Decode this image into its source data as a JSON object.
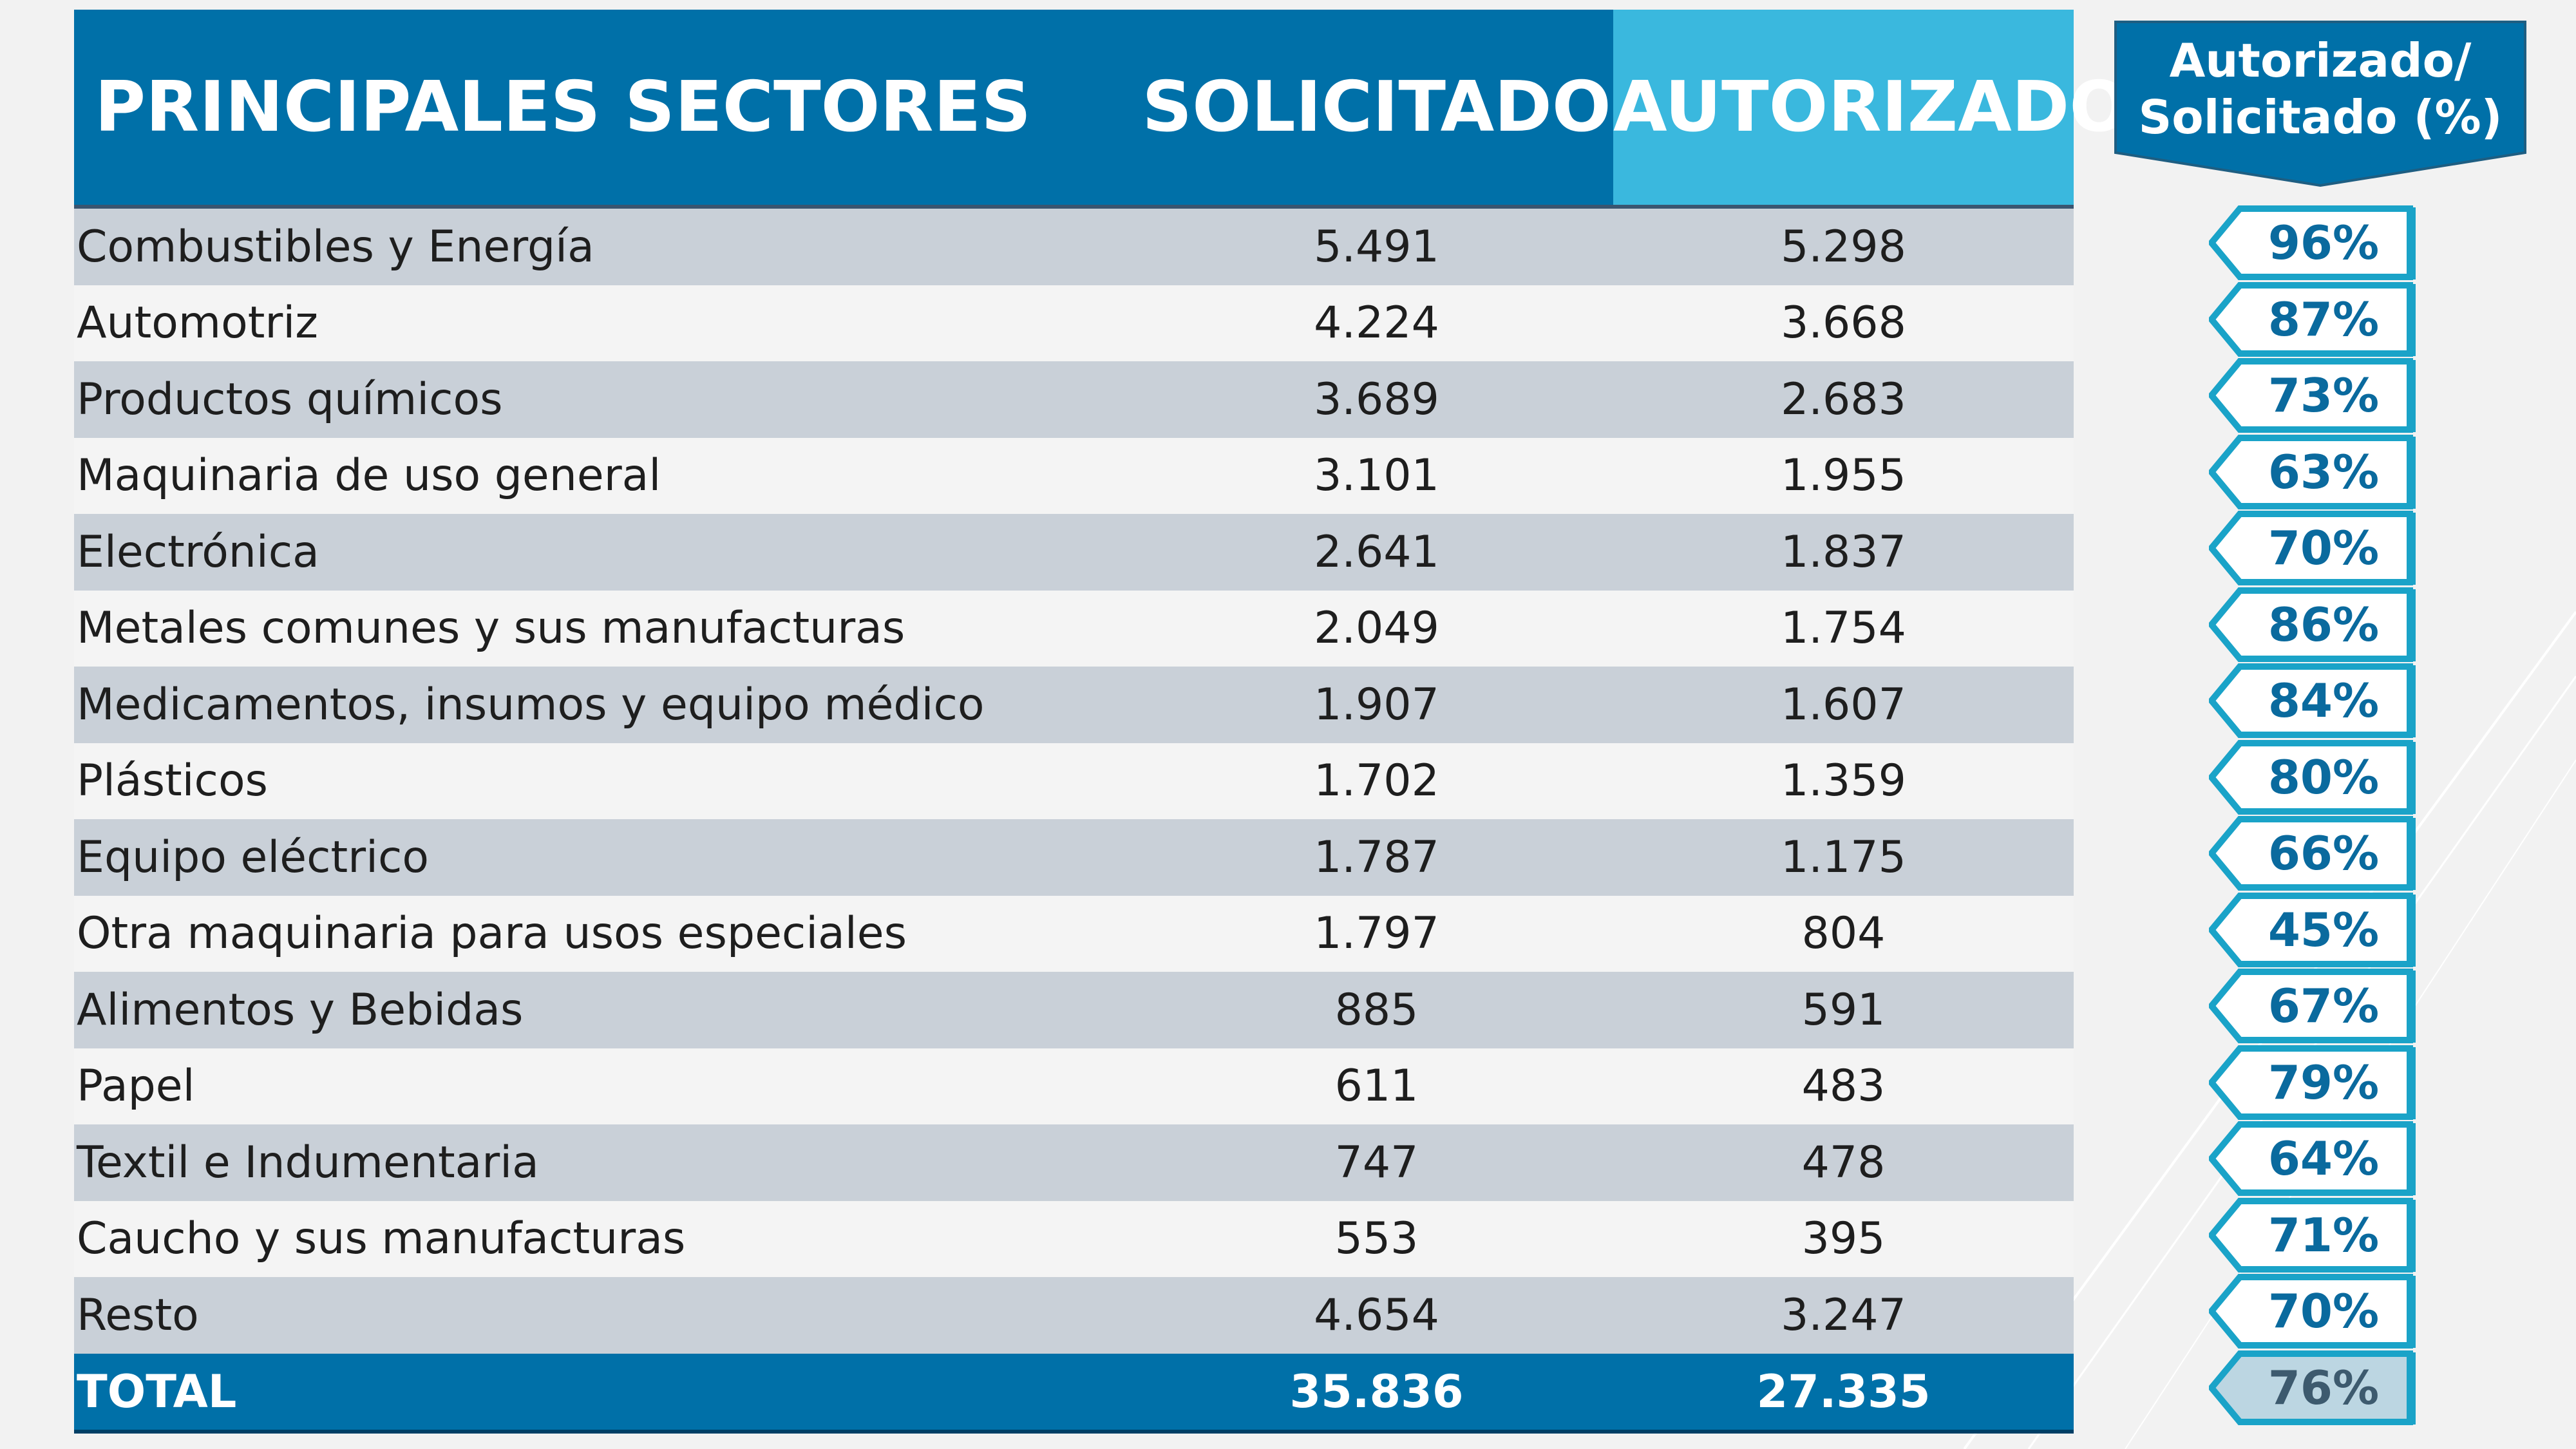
{
  "header": {
    "sector_label": "PRINCIPALES SECTORES",
    "requested_label": "SOLICITADO",
    "authorized_label": "AUTORIZADO",
    "ratio_label_line1": "Autorizado/",
    "ratio_label_line2": "Solicitado (%)"
  },
  "rows": [
    {
      "sector": "Combustibles y Energía",
      "solicitado": "5.491",
      "autorizado": "5.298",
      "ratio": "96%"
    },
    {
      "sector": "Automotriz",
      "solicitado": "4.224",
      "autorizado": "3.668",
      "ratio": "87%"
    },
    {
      "sector": "Productos químicos",
      "solicitado": "3.689",
      "autorizado": "2.683",
      "ratio": "73%"
    },
    {
      "sector": "Maquinaria de uso general",
      "solicitado": "3.101",
      "autorizado": "1.955",
      "ratio": "63%"
    },
    {
      "sector": "Electrónica",
      "solicitado": "2.641",
      "autorizado": "1.837",
      "ratio": "70%"
    },
    {
      "sector": "Metales comunes y sus manufacturas",
      "solicitado": "2.049",
      "autorizado": "1.754",
      "ratio": "86%"
    },
    {
      "sector": "Medicamentos, insumos y equipo médico",
      "solicitado": "1.907",
      "autorizado": "1.607",
      "ratio": "84%"
    },
    {
      "sector": "Plásticos",
      "solicitado": "1.702",
      "autorizado": "1.359",
      "ratio": "80%"
    },
    {
      "sector": "Equipo eléctrico",
      "solicitado": "1.787",
      "autorizado": "1.175",
      "ratio": "66%"
    },
    {
      "sector": "Otra maquinaria para usos especiales",
      "solicitado": "1.797",
      "autorizado": "804",
      "ratio": "45%"
    },
    {
      "sector": "Alimentos y Bebidas",
      "solicitado": "885",
      "autorizado": "591",
      "ratio": "67%"
    },
    {
      "sector": "Papel",
      "solicitado": "611",
      "autorizado": "483",
      "ratio": "79%"
    },
    {
      "sector": "Textil e Indumentaria",
      "solicitado": "747",
      "autorizado": "478",
      "ratio": "64%"
    },
    {
      "sector": "Caucho y sus manufacturas",
      "solicitado": "553",
      "autorizado": "395",
      "ratio": "71%"
    },
    {
      "sector": "Resto",
      "solicitado": "4.654",
      "autorizado": "3.247",
      "ratio": "70%"
    }
  ],
  "total": {
    "label": "TOTAL",
    "solicitado": "35.836",
    "autorizado": "27.335",
    "ratio": "76%"
  },
  "colors": {
    "header_blue": "#0070a8",
    "header_light_blue": "#3ab8de",
    "row_shaded": "#c9d0d8",
    "row_light": "#f4f4f4",
    "badge_border": "#1aa3c8",
    "badge_text": "#0a6a9e"
  }
}
